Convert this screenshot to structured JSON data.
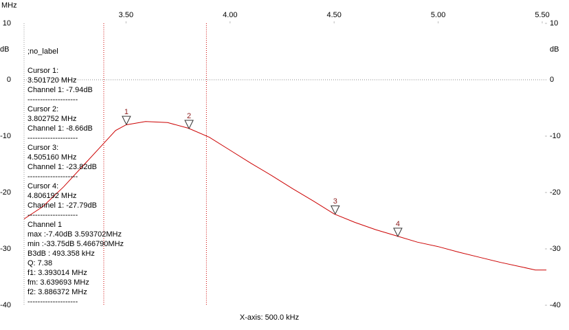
{
  "chart_data": {
    "type": "line",
    "x_unit": "MHz",
    "y_unit": "dB",
    "x_axis_label": "X-axis: 500.0 kHz",
    "trace_label": ";no_label",
    "xlim": [
      3.01,
      5.523
    ],
    "ylim": [
      -40,
      10
    ],
    "xticks": [
      {
        "value": 3.5,
        "label": "3.50"
      },
      {
        "value": 4.0,
        "label": "4.00"
      },
      {
        "value": 4.5,
        "label": "4.50"
      },
      {
        "value": 5.0,
        "label": "5.00"
      },
      {
        "value": 5.5,
        "label": "5.50"
      }
    ],
    "yticks": [
      10,
      0,
      -10,
      -20,
      -30,
      -40
    ],
    "grid": true,
    "series": [
      {
        "color": "#cc0000",
        "x": [
          3.01,
          3.1,
          3.2,
          3.3,
          3.4,
          3.45,
          3.5,
          3.593702,
          3.7,
          3.8,
          3.9,
          4.0,
          4.1,
          4.2,
          4.3,
          4.4,
          4.5,
          4.6,
          4.7,
          4.8,
          4.9,
          5.0,
          5.1,
          5.2,
          5.3,
          5.4,
          5.46679,
          5.52
        ],
        "values": [
          -24.7,
          -22.5,
          -19,
          -15,
          -11,
          -9,
          -8,
          -7.4,
          -7.6,
          -8.6,
          -10.2,
          -12.5,
          -14.8,
          -17,
          -19.3,
          -21.5,
          -23.8,
          -25.3,
          -26.6,
          -27.7,
          -28.8,
          -29.6,
          -30.6,
          -31.5,
          -32.4,
          -33.2,
          -33.75,
          -33.75
        ]
      }
    ],
    "markers": [
      {
        "label": "1",
        "x": 3.50172,
        "y": -7.94
      },
      {
        "label": "2",
        "x": 3.802752,
        "y": -8.66
      },
      {
        "label": "3",
        "x": 4.50516,
        "y": -23.82
      },
      {
        "label": "4",
        "x": 4.806192,
        "y": -27.79
      }
    ],
    "band_lines": [
      3.393014,
      3.886372
    ],
    "band_line_color": "#cc0000",
    "info_lines": [
      "Cursor 1:",
      "3.501720 MHz",
      "Channel 1: -7.94dB",
      "--------------------",
      "Cursor 2:",
      "3.802752 MHz",
      "Channel 1: -8.66dB",
      "--------------------",
      "Cursor 3:",
      "4.505160 MHz",
      "Channel 1: -23.82dB",
      "--------------------",
      "Cursor 4:",
      "4.806192 MHz",
      "Channel 1: -27.79dB",
      "--------------------",
      "Channel 1",
      "max :-7.40dB 3.593702MHz",
      "min :-33.75dB 5.466790MHz",
      "B3dB : 493.358 kHz",
      "Q: 7.38",
      "f1: 3.393014 MHz",
      "fm: 3.639693 MHz",
      "f2: 3.886372 MHz",
      "--------------------"
    ]
  }
}
